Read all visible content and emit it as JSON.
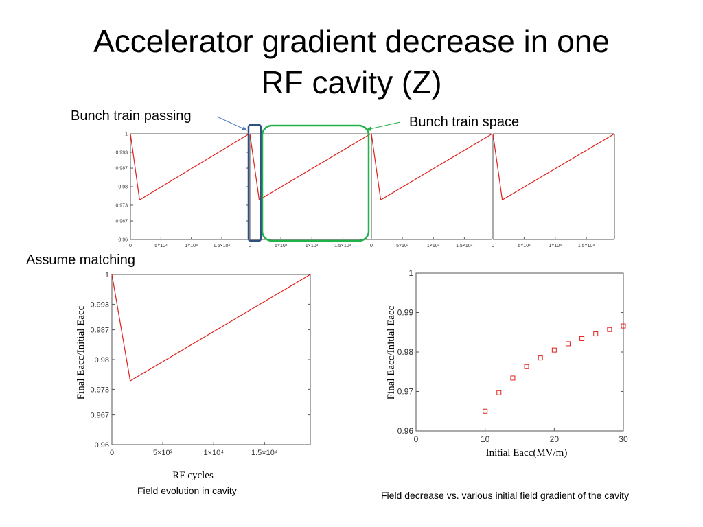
{
  "title": [
    "Accelerator gradient decrease in one",
    "RF cavity (Z)"
  ],
  "annotations": {
    "bunch_train_passing": "Bunch train passing",
    "bunch_train_space": "Bunch train space",
    "assume_matching": "Assume matching"
  },
  "captions": {
    "field_evolution": "Field evolution in cavity",
    "field_decrease": "Field decrease vs. various initial field gradient of the cavity"
  },
  "colors": {
    "series": "#e0201b",
    "frame": "#555555",
    "blue_box": "#2f4f7f",
    "green_box": "#21b24b"
  },
  "chart_data": [
    {
      "type": "line",
      "panels": 4,
      "x_ticks": [
        "0",
        "5×10³",
        "1×10⁴",
        "1.5×10⁴"
      ],
      "x_tick_values": [
        0,
        5000,
        10000,
        15000
      ],
      "y_ticks": [
        "1",
        "0.993",
        "0.987",
        "0.98",
        "0.973",
        "0.967",
        "0.96"
      ],
      "y_tick_values": [
        1,
        0.993,
        0.987,
        0.98,
        0.973,
        0.967,
        0.96
      ],
      "xlim": [
        0,
        19500
      ],
      "ylim": [
        0.96,
        1
      ],
      "series": [
        {
          "x": [
            0,
            1500,
            19500
          ],
          "y": [
            1,
            0.975,
            1
          ]
        }
      ]
    },
    {
      "type": "line",
      "xlabel": "RF cycles",
      "ylabel": "Final Eacc/Initial Eacc",
      "x_ticks": [
        "0",
        "5×10³",
        "1×10⁴",
        "1.5×10⁴"
      ],
      "x_tick_values": [
        0,
        5000,
        10000,
        15000
      ],
      "y_ticks": [
        "1",
        "0.993",
        "0.987",
        "0.98",
        "0.973",
        "0.967",
        "0.96"
      ],
      "y_tick_values": [
        1,
        0.993,
        0.987,
        0.98,
        0.973,
        0.967,
        0.96
      ],
      "xlim": [
        0,
        19500
      ],
      "ylim": [
        0.96,
        1
      ],
      "series": [
        {
          "x": [
            0,
            1800,
            19500
          ],
          "y": [
            1,
            0.975,
            1
          ]
        }
      ]
    },
    {
      "type": "scatter",
      "xlabel": "Initial Eacc(MV/m)",
      "ylabel": "Final Eacc/Initial Eacc",
      "x_ticks": [
        "0",
        "10",
        "20",
        "30"
      ],
      "x_tick_values": [
        0,
        10,
        20,
        30
      ],
      "y_ticks": [
        "1",
        "0.99",
        "0.98",
        "0.97",
        "0.96"
      ],
      "y_tick_values": [
        1,
        0.99,
        0.98,
        0.97,
        0.96
      ],
      "xlim": [
        0,
        30
      ],
      "ylim": [
        0.96,
        1
      ],
      "series": [
        {
          "x": [
            10,
            12,
            14,
            16,
            18,
            20,
            22,
            24,
            26,
            28,
            30
          ],
          "y": [
            0.965,
            0.9697,
            0.9734,
            0.9763,
            0.9785,
            0.9805,
            0.9821,
            0.9834,
            0.9846,
            0.9857,
            0.9866
          ]
        }
      ]
    }
  ]
}
